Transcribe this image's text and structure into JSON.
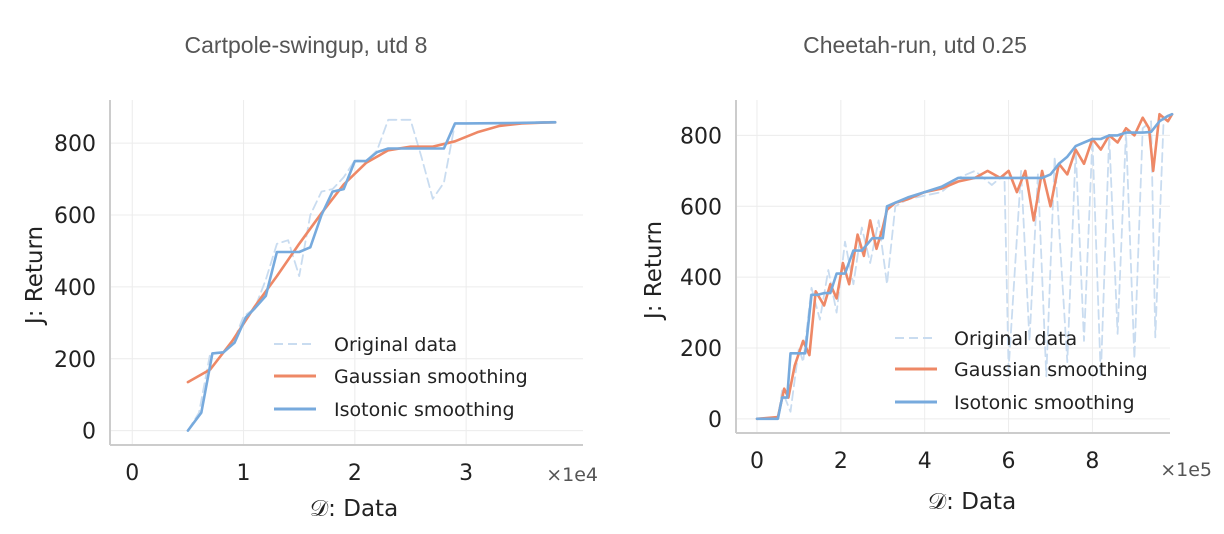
{
  "chart_data": [
    {
      "type": "line",
      "title": "Cartpole-swingup, utd 8",
      "xlabel": "𝒟: Data",
      "ylabel": "J: Return",
      "x_scale_label": "×1e4",
      "xlim": [
        -0.2,
        4.05
      ],
      "ylim": [
        -40,
        920
      ],
      "xticks": [
        0,
        1,
        2,
        3
      ],
      "xtick_labels": [
        "0",
        "1",
        "2",
        "3"
      ],
      "yticks": [
        0,
        200,
        400,
        600,
        800
      ],
      "ytick_labels": [
        "0",
        "200",
        "400",
        "600",
        "800"
      ],
      "grid": true,
      "legend_position": "lower-right",
      "colors": {
        "original": "#c9dcf0",
        "gaussian": "#ee8866",
        "isotonic": "#77aadd"
      },
      "series": [
        {
          "name": "Original data",
          "style": "dashed",
          "x": [
            0.5,
            0.6,
            0.7,
            0.8,
            0.9,
            1.0,
            1.1,
            1.2,
            1.3,
            1.4,
            1.5,
            1.6,
            1.7,
            1.8,
            1.9,
            2.0,
            2.1,
            2.2,
            2.3,
            2.4,
            2.5,
            2.6,
            2.7,
            2.8,
            2.9,
            3.0,
            3.2,
            3.4,
            3.6,
            3.8
          ],
          "values": [
            0,
            50,
            215,
            218,
            240,
            318,
            340,
            420,
            520,
            530,
            430,
            600,
            665,
            672,
            705,
            752,
            750,
            780,
            865,
            865,
            865,
            760,
            645,
            690,
            855,
            855,
            855,
            856,
            858,
            860
          ]
        },
        {
          "name": "Gaussian smoothing",
          "style": "solid",
          "x": [
            0.5,
            0.7,
            0.9,
            1.1,
            1.3,
            1.5,
            1.7,
            1.9,
            2.1,
            2.3,
            2.5,
            2.7,
            2.9,
            3.1,
            3.3,
            3.5,
            3.7,
            3.8
          ],
          "values": [
            135,
            170,
            250,
            345,
            430,
            520,
            605,
            685,
            745,
            780,
            790,
            790,
            805,
            830,
            848,
            855,
            857,
            858
          ]
        },
        {
          "name": "Isotonic smoothing",
          "style": "solid",
          "x": [
            0.5,
            0.62,
            0.72,
            0.82,
            0.92,
            1.02,
            1.1,
            1.2,
            1.3,
            1.4,
            1.5,
            1.6,
            1.7,
            1.8,
            1.9,
            2.0,
            2.1,
            2.2,
            2.3,
            2.4,
            2.5,
            2.6,
            2.7,
            2.8,
            2.9,
            3.0,
            3.4,
            3.8
          ],
          "values": [
            0,
            50,
            215,
            218,
            245,
            315,
            340,
            375,
            497,
            497,
            497,
            510,
            600,
            665,
            672,
            750,
            750,
            775,
            785,
            785,
            785,
            785,
            785,
            785,
            855,
            855,
            856,
            858
          ]
        }
      ]
    },
    {
      "type": "line",
      "title": "Cheetah-run, utd 0.25",
      "xlabel": "𝒟: Data",
      "ylabel": "J: Return",
      "x_scale_label": "×1e5",
      "xlim": [
        -0.5,
        9.85
      ],
      "ylim": [
        -40,
        900
      ],
      "xticks": [
        0,
        2,
        4,
        6,
        8
      ],
      "xtick_labels": [
        "0",
        "2",
        "4",
        "6",
        "8"
      ],
      "yticks": [
        0,
        200,
        400,
        600,
        800
      ],
      "ytick_labels": [
        "0",
        "200",
        "400",
        "600",
        "800"
      ],
      "grid": true,
      "legend_position": "lower-right",
      "colors": {
        "original": "#c9dcf0",
        "gaussian": "#ee8866",
        "isotonic": "#77aadd"
      },
      "series": [
        {
          "name": "Original data",
          "style": "dashed",
          "x": [
            0,
            0.5,
            0.6,
            0.8,
            1.0,
            1.1,
            1.3,
            1.5,
            1.7,
            1.9,
            2.1,
            2.3,
            2.5,
            2.7,
            2.9,
            3.1,
            3.3,
            3.6,
            4.0,
            4.4,
            4.8,
            5.2,
            5.6,
            5.9,
            6.0,
            6.3,
            6.5,
            6.7,
            6.9,
            7.1,
            7.4,
            7.6,
            7.8,
            8.0,
            8.2,
            8.4,
            8.6,
            8.8,
            9.0,
            9.2,
            9.4,
            9.5,
            9.7,
            9.9
          ],
          "values": [
            0,
            0,
            80,
            20,
            200,
            160,
            370,
            280,
            420,
            300,
            500,
            380,
            540,
            440,
            560,
            380,
            600,
            620,
            630,
            640,
            680,
            700,
            660,
            690,
            140,
            700,
            220,
            690,
            120,
            740,
            160,
            760,
            220,
            790,
            120,
            800,
            240,
            810,
            170,
            820,
            840,
            230,
            850,
            860
          ]
        },
        {
          "name": "Gaussian smoothing",
          "style": "solid",
          "x": [
            0,
            0.5,
            0.65,
            0.75,
            0.9,
            1.1,
            1.25,
            1.4,
            1.6,
            1.75,
            1.9,
            2.05,
            2.2,
            2.4,
            2.55,
            2.7,
            2.85,
            3.0,
            3.1,
            3.3,
            3.6,
            4.0,
            4.4,
            4.8,
            5.2,
            5.5,
            5.8,
            6.0,
            6.2,
            6.4,
            6.6,
            6.8,
            7.0,
            7.2,
            7.4,
            7.6,
            7.8,
            8.0,
            8.2,
            8.4,
            8.6,
            8.8,
            9.0,
            9.2,
            9.35,
            9.45,
            9.6,
            9.8,
            9.9
          ],
          "values": [
            0,
            5,
            85,
            60,
            150,
            220,
            180,
            360,
            320,
            380,
            340,
            440,
            380,
            520,
            460,
            560,
            480,
            540,
            590,
            610,
            620,
            640,
            650,
            670,
            680,
            700,
            680,
            700,
            640,
            700,
            560,
            700,
            600,
            720,
            690,
            760,
            720,
            790,
            760,
            800,
            780,
            820,
            800,
            850,
            820,
            700,
            860,
            840,
            860
          ]
        },
        {
          "name": "Isotonic smoothing",
          "style": "solid",
          "x": [
            0,
            0.5,
            0.6,
            0.72,
            0.8,
            0.95,
            1.15,
            1.3,
            1.45,
            1.6,
            1.75,
            1.9,
            2.1,
            2.3,
            2.5,
            2.75,
            3.0,
            3.1,
            3.3,
            3.6,
            4.0,
            4.4,
            4.8,
            5.2,
            5.6,
            6.0,
            6.4,
            6.8,
            7.0,
            7.2,
            7.4,
            7.6,
            7.8,
            8.0,
            8.2,
            8.4,
            8.6,
            8.8,
            9.0,
            9.2,
            9.4,
            9.6,
            9.8,
            9.9
          ],
          "values": [
            0,
            0,
            60,
            60,
            185,
            185,
            185,
            350,
            350,
            355,
            355,
            410,
            410,
            475,
            475,
            510,
            510,
            600,
            610,
            625,
            640,
            655,
            680,
            680,
            680,
            680,
            680,
            680,
            690,
            720,
            740,
            770,
            780,
            790,
            790,
            800,
            800,
            808,
            808,
            808,
            810,
            840,
            855,
            860
          ]
        }
      ]
    }
  ]
}
